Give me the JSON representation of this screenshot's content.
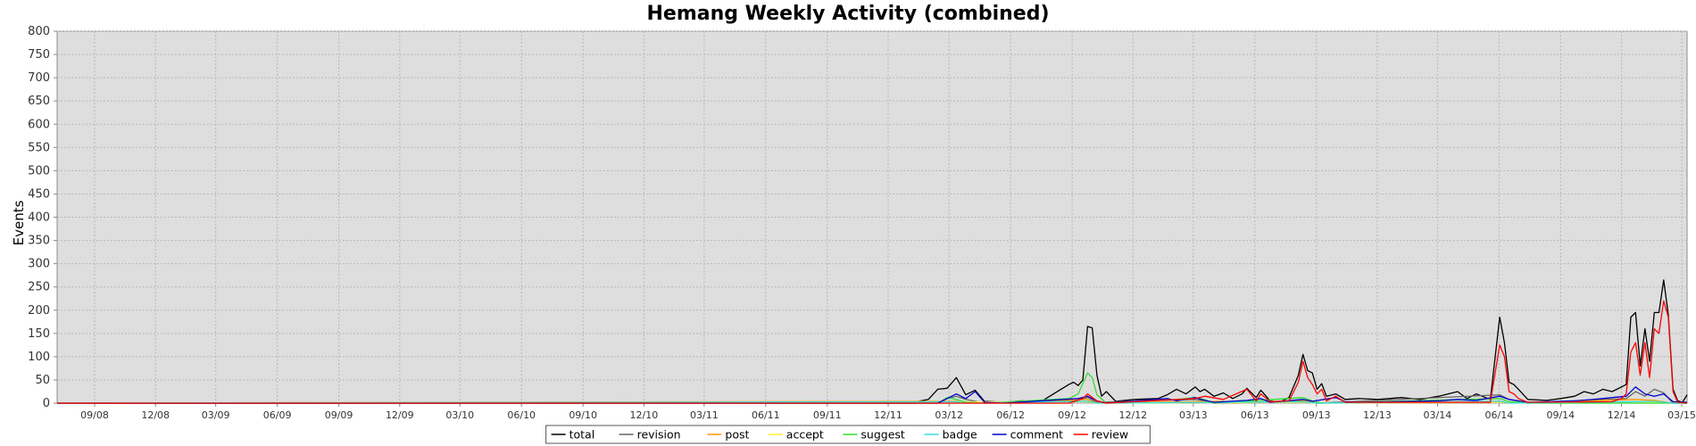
{
  "chart_data": {
    "type": "line",
    "title": "Hemang Weekly Activity (combined)",
    "xlabel": "",
    "ylabel": "Events",
    "ylim": [
      0,
      800
    ],
    "yticks": [
      0,
      50,
      100,
      150,
      200,
      250,
      300,
      350,
      400,
      450,
      500,
      550,
      600,
      650,
      700,
      750,
      800
    ],
    "xlim": [
      "2008-07-07",
      "2015-03-09"
    ],
    "xticks": [
      "09/08",
      "12/08",
      "03/09",
      "06/09",
      "09/09",
      "12/09",
      "03/10",
      "06/10",
      "09/10",
      "12/10",
      "03/11",
      "06/11",
      "09/11",
      "12/11",
      "03/12",
      "06/12",
      "09/12",
      "12/12",
      "03/13",
      "06/13",
      "09/13",
      "12/13",
      "03/14",
      "06/14",
      "09/14",
      "12/14",
      "03/15"
    ],
    "grid": true,
    "legend_position": "bottom-center",
    "series": [
      {
        "name": "total",
        "color": "#000000",
        "points": [
          [
            "2008-07-07",
            0
          ],
          [
            "2012-01-02",
            0
          ],
          [
            "2012-01-30",
            8
          ],
          [
            "2012-02-13",
            30
          ],
          [
            "2012-02-27",
            32
          ],
          [
            "2012-03-12",
            55
          ],
          [
            "2012-03-26",
            18
          ],
          [
            "2012-04-09",
            28
          ],
          [
            "2012-04-23",
            4
          ],
          [
            "2012-05-21",
            2
          ],
          [
            "2012-06-18",
            5
          ],
          [
            "2012-07-16",
            3
          ],
          [
            "2012-08-13",
            28
          ],
          [
            "2012-08-27",
            40
          ],
          [
            "2012-09-03",
            45
          ],
          [
            "2012-09-10",
            38
          ],
          [
            "2012-09-17",
            50
          ],
          [
            "2012-09-24",
            165
          ],
          [
            "2012-10-01",
            162
          ],
          [
            "2012-10-08",
            60
          ],
          [
            "2012-10-15",
            15
          ],
          [
            "2012-10-22",
            25
          ],
          [
            "2012-11-05",
            4
          ],
          [
            "2012-12-03",
            8
          ],
          [
            "2013-01-07",
            10
          ],
          [
            "2013-01-21",
            18
          ],
          [
            "2013-02-04",
            30
          ],
          [
            "2013-02-18",
            20
          ],
          [
            "2013-03-04",
            35
          ],
          [
            "2013-03-11",
            25
          ],
          [
            "2013-03-18",
            30
          ],
          [
            "2013-04-01",
            15
          ],
          [
            "2013-04-15",
            22
          ],
          [
            "2013-04-29",
            10
          ],
          [
            "2013-05-13",
            20
          ],
          [
            "2013-05-20",
            32
          ],
          [
            "2013-06-03",
            12
          ],
          [
            "2013-06-10",
            28
          ],
          [
            "2013-06-24",
            5
          ],
          [
            "2013-07-08",
            2
          ],
          [
            "2013-07-22",
            12
          ],
          [
            "2013-08-05",
            60
          ],
          [
            "2013-08-12",
            105
          ],
          [
            "2013-08-19",
            70
          ],
          [
            "2013-08-26",
            65
          ],
          [
            "2013-09-02",
            30
          ],
          [
            "2013-09-09",
            42
          ],
          [
            "2013-09-16",
            15
          ],
          [
            "2013-09-30",
            20
          ],
          [
            "2013-10-14",
            8
          ],
          [
            "2013-11-04",
            10
          ],
          [
            "2013-12-02",
            8
          ],
          [
            "2014-01-06",
            12
          ],
          [
            "2014-02-03",
            8
          ],
          [
            "2014-03-03",
            15
          ],
          [
            "2014-03-31",
            25
          ],
          [
            "2014-04-14",
            10
          ],
          [
            "2014-04-28",
            20
          ],
          [
            "2014-05-19",
            8
          ],
          [
            "2014-06-02",
            185
          ],
          [
            "2014-06-09",
            130
          ],
          [
            "2014-06-16",
            45
          ],
          [
            "2014-06-23",
            40
          ],
          [
            "2014-06-30",
            30
          ],
          [
            "2014-07-14",
            8
          ],
          [
            "2014-08-11",
            6
          ],
          [
            "2014-09-01",
            10
          ],
          [
            "2014-09-22",
            15
          ],
          [
            "2014-10-06",
            25
          ],
          [
            "2014-10-20",
            20
          ],
          [
            "2014-11-03",
            30
          ],
          [
            "2014-11-17",
            25
          ],
          [
            "2014-12-01",
            35
          ],
          [
            "2014-12-08",
            40
          ],
          [
            "2014-12-15",
            185
          ],
          [
            "2014-12-22",
            195
          ],
          [
            "2014-12-29",
            80
          ],
          [
            "2015-01-05",
            160
          ],
          [
            "2015-01-12",
            90
          ],
          [
            "2015-01-19",
            195
          ],
          [
            "2015-01-26",
            195
          ],
          [
            "2015-02-02",
            265
          ],
          [
            "2015-02-09",
            190
          ],
          [
            "2015-02-16",
            30
          ],
          [
            "2015-02-23",
            5
          ],
          [
            "2015-03-02",
            2
          ],
          [
            "2015-03-09",
            18
          ]
        ]
      },
      {
        "name": "revision",
        "color": "#666666",
        "points": [
          [
            "2008-07-07",
            0
          ],
          [
            "2012-02-13",
            0
          ],
          [
            "2012-02-27",
            10
          ],
          [
            "2012-03-12",
            15
          ],
          [
            "2012-03-26",
            8
          ],
          [
            "2012-04-23",
            0
          ],
          [
            "2012-09-03",
            5
          ],
          [
            "2012-09-24",
            12
          ],
          [
            "2012-10-08",
            2
          ],
          [
            "2013-03-04",
            8
          ],
          [
            "2013-03-18",
            5
          ],
          [
            "2013-04-01",
            0
          ],
          [
            "2013-08-12",
            5
          ],
          [
            "2013-09-02",
            0
          ],
          [
            "2014-06-02",
            18
          ],
          [
            "2014-06-16",
            8
          ],
          [
            "2014-07-14",
            0
          ],
          [
            "2014-12-08",
            10
          ],
          [
            "2014-12-22",
            25
          ],
          [
            "2015-01-05",
            15
          ],
          [
            "2015-01-19",
            30
          ],
          [
            "2015-02-02",
            22
          ],
          [
            "2015-02-16",
            0
          ],
          [
            "2015-03-09",
            0
          ]
        ]
      },
      {
        "name": "post",
        "color": "#ff9900",
        "points": [
          [
            "2008-07-07",
            0
          ],
          [
            "2012-03-12",
            4
          ],
          [
            "2012-03-26",
            0
          ],
          [
            "2012-09-24",
            8
          ],
          [
            "2012-10-08",
            0
          ],
          [
            "2013-04-15",
            4
          ],
          [
            "2013-04-29",
            0
          ],
          [
            "2013-08-12",
            6
          ],
          [
            "2013-09-02",
            0
          ],
          [
            "2014-06-02",
            4
          ],
          [
            "2014-06-16",
            0
          ],
          [
            "2014-12-22",
            8
          ],
          [
            "2015-01-19",
            6
          ],
          [
            "2015-02-16",
            0
          ],
          [
            "2015-03-09",
            0
          ]
        ]
      },
      {
        "name": "accept",
        "color": "#ffee33",
        "points": [
          [
            "2008-07-07",
            0
          ],
          [
            "2012-09-24",
            3
          ],
          [
            "2012-10-08",
            0
          ],
          [
            "2013-08-12",
            2
          ],
          [
            "2013-09-02",
            0
          ],
          [
            "2014-12-22",
            3
          ],
          [
            "2015-01-19",
            2
          ],
          [
            "2015-02-16",
            0
          ],
          [
            "2015-03-09",
            0
          ]
        ]
      },
      {
        "name": "suggest",
        "color": "#33dd33",
        "points": [
          [
            "2008-07-07",
            0
          ],
          [
            "2012-02-13",
            0
          ],
          [
            "2012-02-27",
            12
          ],
          [
            "2012-03-12",
            8
          ],
          [
            "2012-03-26",
            2
          ],
          [
            "2012-04-23",
            0
          ],
          [
            "2012-08-27",
            10
          ],
          [
            "2012-09-10",
            20
          ],
          [
            "2012-09-24",
            65
          ],
          [
            "2012-10-01",
            55
          ],
          [
            "2012-10-08",
            18
          ],
          [
            "2012-10-22",
            0
          ],
          [
            "2013-02-04",
            8
          ],
          [
            "2013-03-04",
            12
          ],
          [
            "2013-03-18",
            8
          ],
          [
            "2013-04-01",
            0
          ],
          [
            "2013-08-12",
            12
          ],
          [
            "2013-08-26",
            5
          ],
          [
            "2013-09-09",
            0
          ],
          [
            "2014-06-02",
            10
          ],
          [
            "2014-06-16",
            3
          ],
          [
            "2014-07-14",
            0
          ],
          [
            "2015-03-09",
            0
          ]
        ]
      },
      {
        "name": "badge",
        "color": "#33dddd",
        "points": [
          [
            "2008-07-07",
            0
          ],
          [
            "2012-03-12",
            3
          ],
          [
            "2012-03-26",
            0
          ],
          [
            "2012-09-24",
            4
          ],
          [
            "2012-10-08",
            0
          ],
          [
            "2013-08-12",
            3
          ],
          [
            "2013-09-02",
            0
          ],
          [
            "2014-06-02",
            4
          ],
          [
            "2014-06-16",
            0
          ],
          [
            "2014-12-22",
            3
          ],
          [
            "2015-01-19",
            4
          ],
          [
            "2015-02-16",
            0
          ],
          [
            "2015-03-09",
            0
          ]
        ]
      },
      {
        "name": "comment",
        "color": "#0000cc",
        "points": [
          [
            "2008-07-07",
            0
          ],
          [
            "2012-02-13",
            0
          ],
          [
            "2012-02-27",
            10
          ],
          [
            "2012-03-12",
            20
          ],
          [
            "2012-03-26",
            10
          ],
          [
            "2012-04-09",
            25
          ],
          [
            "2012-04-23",
            2
          ],
          [
            "2012-05-21",
            0
          ],
          [
            "2012-09-10",
            10
          ],
          [
            "2012-09-24",
            15
          ],
          [
            "2012-10-08",
            5
          ],
          [
            "2012-10-22",
            0
          ],
          [
            "2013-01-21",
            10
          ],
          [
            "2013-02-04",
            5
          ],
          [
            "2013-03-04",
            12
          ],
          [
            "2013-03-18",
            6
          ],
          [
            "2013-04-01",
            2
          ],
          [
            "2013-05-20",
            6
          ],
          [
            "2013-06-10",
            10
          ],
          [
            "2013-06-24",
            2
          ],
          [
            "2013-08-12",
            8
          ],
          [
            "2013-08-26",
            4
          ],
          [
            "2013-09-30",
            12
          ],
          [
            "2013-10-14",
            3
          ],
          [
            "2013-11-04",
            2
          ],
          [
            "2014-03-03",
            5
          ],
          [
            "2014-03-31",
            8
          ],
          [
            "2014-04-28",
            6
          ],
          [
            "2014-06-02",
            15
          ],
          [
            "2014-06-16",
            8
          ],
          [
            "2014-06-30",
            5
          ],
          [
            "2014-07-14",
            2
          ],
          [
            "2014-09-22",
            5
          ],
          [
            "2014-10-20",
            8
          ],
          [
            "2014-12-08",
            15
          ],
          [
            "2014-12-22",
            35
          ],
          [
            "2015-01-05",
            20
          ],
          [
            "2015-01-19",
            15
          ],
          [
            "2015-02-02",
            20
          ],
          [
            "2015-02-16",
            3
          ],
          [
            "2015-03-09",
            2
          ]
        ]
      },
      {
        "name": "review",
        "color": "#ff0000",
        "points": [
          [
            "2008-07-07",
            0
          ],
          [
            "2012-08-27",
            0
          ],
          [
            "2012-09-17",
            10
          ],
          [
            "2012-09-24",
            20
          ],
          [
            "2012-10-08",
            5
          ],
          [
            "2012-10-22",
            0
          ],
          [
            "2013-03-04",
            10
          ],
          [
            "2013-03-18",
            15
          ],
          [
            "2013-04-15",
            8
          ],
          [
            "2013-05-20",
            30
          ],
          [
            "2013-06-03",
            5
          ],
          [
            "2013-06-10",
            20
          ],
          [
            "2013-06-24",
            3
          ],
          [
            "2013-07-22",
            5
          ],
          [
            "2013-08-05",
            45
          ],
          [
            "2013-08-12",
            90
          ],
          [
            "2013-08-19",
            55
          ],
          [
            "2013-08-26",
            40
          ],
          [
            "2013-09-02",
            20
          ],
          [
            "2013-09-09",
            30
          ],
          [
            "2013-09-16",
            5
          ],
          [
            "2013-09-30",
            15
          ],
          [
            "2013-10-14",
            2
          ],
          [
            "2014-05-19",
            2
          ],
          [
            "2014-06-02",
            125
          ],
          [
            "2014-06-09",
            100
          ],
          [
            "2014-06-16",
            25
          ],
          [
            "2014-06-23",
            20
          ],
          [
            "2014-06-30",
            10
          ],
          [
            "2014-07-14",
            2
          ],
          [
            "2014-11-17",
            3
          ],
          [
            "2014-12-01",
            10
          ],
          [
            "2014-12-08",
            20
          ],
          [
            "2014-12-15",
            110
          ],
          [
            "2014-12-22",
            130
          ],
          [
            "2014-12-29",
            60
          ],
          [
            "2015-01-05",
            130
          ],
          [
            "2015-01-12",
            55
          ],
          [
            "2015-01-19",
            160
          ],
          [
            "2015-01-26",
            150
          ],
          [
            "2015-02-02",
            220
          ],
          [
            "2015-02-09",
            185
          ],
          [
            "2015-02-16",
            25
          ],
          [
            "2015-02-23",
            2
          ],
          [
            "2015-03-09",
            0
          ]
        ]
      }
    ]
  }
}
